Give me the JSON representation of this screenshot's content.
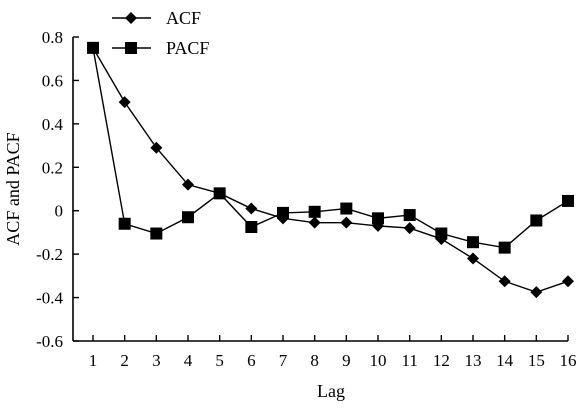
{
  "chart_data": {
    "type": "line",
    "title": "",
    "xlabel": "Lag",
    "ylabel": "ACF and PACF",
    "categories": [
      1,
      2,
      3,
      4,
      5,
      6,
      7,
      8,
      9,
      10,
      11,
      12,
      13,
      14,
      15,
      16
    ],
    "xlim": [
      1,
      16
    ],
    "ylim": [
      -0.6,
      0.8
    ],
    "yticks": [
      -0.6,
      -0.4,
      -0.2,
      0,
      0.2,
      0.4,
      0.6,
      0.8
    ],
    "ytick_labels": [
      "-0.6",
      "-0.4",
      "-0.2",
      "0",
      "0.2",
      "0.4",
      "0.6",
      "0.8"
    ],
    "xtick_labels": [
      "1",
      "2",
      "3",
      "4",
      "5",
      "6",
      "7",
      "8",
      "9",
      "10",
      "11",
      "12",
      "13",
      "14",
      "15",
      "16"
    ],
    "grid": false,
    "legend": {
      "placement": "top-left",
      "entries": [
        "ACF",
        "PACF"
      ]
    },
    "series": [
      {
        "name": "ACF",
        "marker": "diamond",
        "values": [
          0.75,
          0.5,
          0.29,
          0.12,
          0.08,
          0.01,
          -0.035,
          -0.055,
          -0.055,
          -0.07,
          -0.08,
          -0.13,
          -0.22,
          -0.325,
          -0.375,
          -0.325
        ]
      },
      {
        "name": "PACF",
        "marker": "square",
        "values": [
          0.75,
          -0.06,
          -0.105,
          -0.03,
          0.08,
          -0.075,
          -0.01,
          -0.005,
          0.01,
          -0.035,
          -0.02,
          -0.105,
          -0.145,
          -0.17,
          -0.045,
          0.045
        ]
      }
    ]
  },
  "colors": {
    "background": "#ffffff",
    "foreground": "#000000"
  }
}
